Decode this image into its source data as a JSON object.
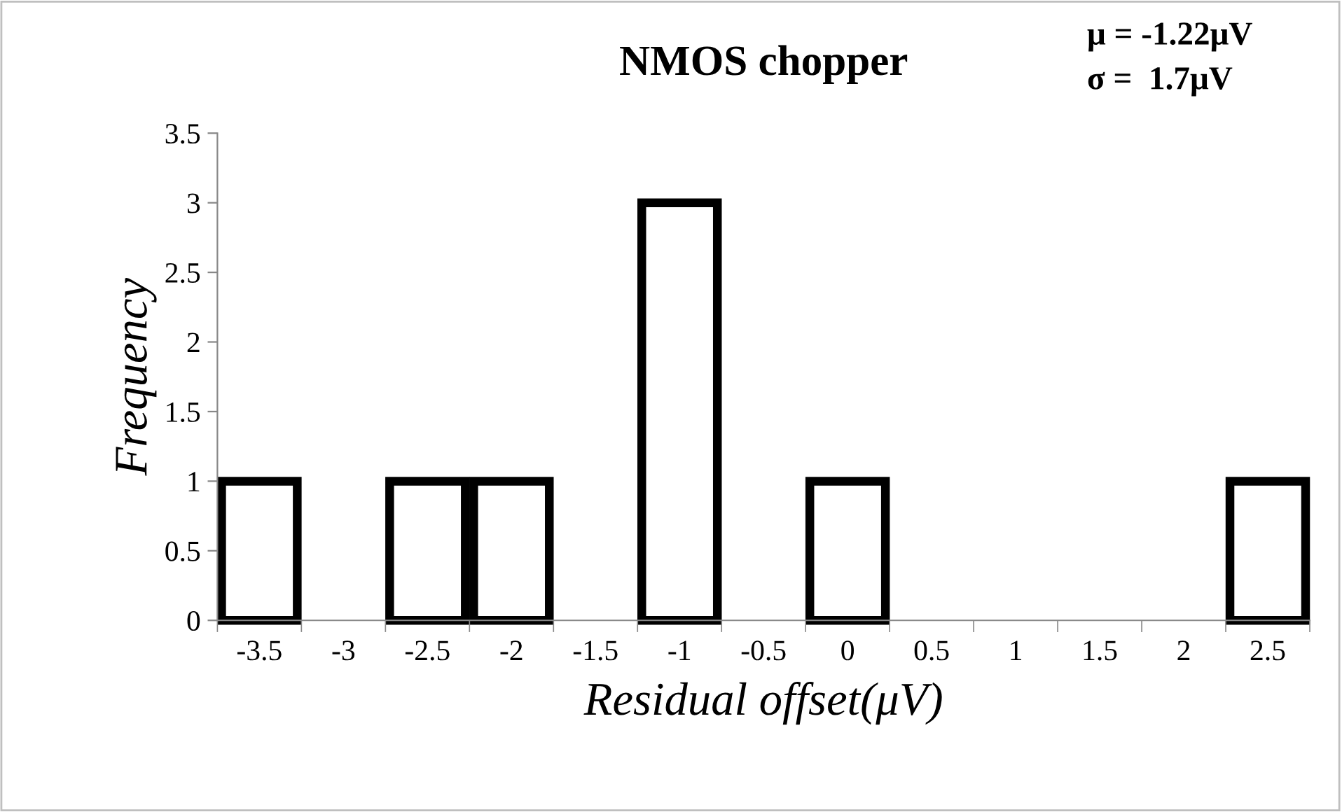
{
  "chart_data": {
    "type": "bar",
    "title": "NMOS chopper",
    "xlabel": "Residual offset(μV)",
    "ylabel": "Frequency",
    "categories": [
      "-3.5",
      "-3",
      "-2.5",
      "-2",
      "-1.5",
      "-1",
      "-0.5",
      "0",
      "0.5",
      "1",
      "1.5",
      "2",
      "2.5"
    ],
    "values": [
      1,
      0,
      1,
      1,
      0,
      3,
      0,
      1,
      0,
      0,
      0,
      0,
      1
    ],
    "color": "#000000",
    "ylim": [
      0,
      3.5
    ],
    "yticks": [
      0,
      0.5,
      1,
      1.5,
      2,
      2.5,
      3,
      3.5
    ],
    "grid": false,
    "annotations": [
      "μ = -1.22μV",
      "σ =  1.7μV"
    ]
  }
}
